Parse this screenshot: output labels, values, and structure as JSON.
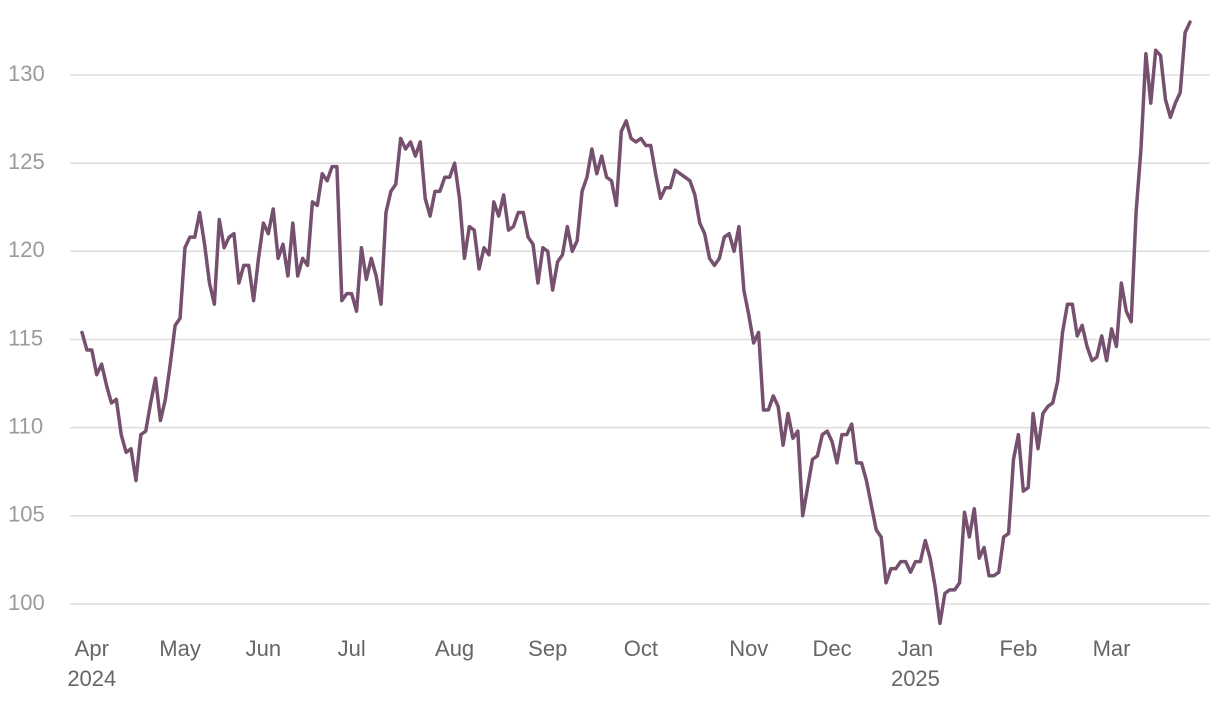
{
  "chart_data": {
    "type": "line",
    "color": "#76506f",
    "grid": true,
    "ylim": [
      98.5,
      133.4
    ],
    "yticks": [
      100,
      105,
      110,
      115,
      120,
      125,
      130
    ],
    "categories": [
      null,
      null,
      "Apr\n2024",
      null,
      null,
      null,
      null,
      null,
      null,
      null,
      null,
      null,
      null,
      null,
      null,
      null,
      null,
      null,
      null,
      null,
      "May",
      null,
      null,
      null,
      null,
      null,
      null,
      null,
      null,
      null,
      null,
      null,
      null,
      null,
      null,
      null,
      null,
      "Jun",
      null,
      null,
      null,
      null,
      null,
      null,
      null,
      null,
      null,
      null,
      null,
      null,
      null,
      null,
      null,
      null,
      null,
      "Jul",
      null,
      null,
      null,
      null,
      null,
      null,
      null,
      null,
      null,
      null,
      null,
      null,
      null,
      null,
      null,
      null,
      null,
      null,
      null,
      null,
      "Aug",
      null,
      null,
      null,
      null,
      null,
      null,
      null,
      null,
      null,
      null,
      null,
      null,
      null,
      null,
      null,
      null,
      null,
      null,
      "Sep",
      null,
      null,
      null,
      null,
      null,
      null,
      null,
      null,
      null,
      null,
      null,
      null,
      null,
      null,
      null,
      null,
      null,
      null,
      "Oct",
      null,
      null,
      null,
      null,
      null,
      null,
      null,
      null,
      null,
      null,
      null,
      null,
      null,
      null,
      null,
      null,
      null,
      null,
      null,
      null,
      null,
      "Nov",
      null,
      null,
      null,
      null,
      null,
      null,
      null,
      null,
      null,
      null,
      null,
      null,
      null,
      null,
      null,
      null,
      "Dec",
      null,
      null,
      null,
      null,
      null,
      null,
      null,
      null,
      null,
      null,
      null,
      null,
      null,
      null,
      null,
      null,
      "Jan\n2025",
      null,
      null,
      null,
      null,
      null,
      null,
      null,
      null,
      null,
      null,
      null,
      null,
      null,
      null,
      null,
      null,
      null,
      null,
      null,
      null,
      "Feb",
      null,
      null,
      null,
      null,
      null,
      null,
      null,
      null,
      null,
      null,
      null,
      null,
      null,
      null,
      null,
      null,
      null,
      null,
      "Mar",
      null,
      null,
      null,
      null,
      null,
      null,
      null,
      null,
      null,
      null,
      null,
      null,
      null,
      null,
      null,
      null
    ],
    "values": [
      115.4,
      114.4,
      114.4,
      113,
      113.6,
      112.4,
      111.4,
      111.6,
      109.6,
      108.6,
      108.8,
      107,
      109.6,
      109.8,
      111.4,
      112.8,
      110.4,
      111.6,
      113.6,
      115.8,
      116.2,
      120.2,
      120.8,
      120.8,
      122.2,
      120.4,
      118.2,
      117,
      121.8,
      120.2,
      120.8,
      121,
      118.2,
      119.2,
      119.2,
      117.2,
      119.6,
      121.6,
      121,
      122.4,
      119.6,
      120.4,
      118.6,
      121.6,
      118.6,
      119.6,
      119.2,
      122.8,
      122.6,
      124.4,
      124,
      124.8,
      124.8,
      117.2,
      117.6,
      117.6,
      116.6,
      120.2,
      118.4,
      119.6,
      118.6,
      117,
      122.2,
      123.4,
      123.8,
      126.4,
      125.8,
      126.2,
      125.4,
      126.2,
      123,
      122,
      123.4,
      123.4,
      124.2,
      124.2,
      125,
      123,
      119.6,
      121.4,
      121.2,
      119,
      120.2,
      119.8,
      122.8,
      122,
      123.2,
      121.2,
      121.4,
      122.2,
      122.2,
      120.8,
      120.4,
      118.2,
      120.2,
      120,
      117.8,
      119.4,
      119.8,
      121.4,
      120,
      120.6,
      123.4,
      124.2,
      125.8,
      124.4,
      125.4,
      124.2,
      124,
      122.6,
      126.8,
      127.4,
      126.4,
      126.2,
      126.4,
      126,
      126,
      124.4,
      123,
      123.6,
      123.6,
      124.6,
      124.4,
      124.2,
      124,
      123.2,
      121.6,
      121,
      119.6,
      119.2,
      119.6,
      120.8,
      121,
      120,
      121.4,
      117.8,
      116.4,
      114.8,
      115.4,
      111,
      111,
      111.8,
      111.2,
      109,
      110.8,
      109.4,
      109.8,
      105,
      106.6,
      108.2,
      108.4,
      109.6,
      109.8,
      109.2,
      108,
      109.6,
      109.6,
      110.2,
      108,
      108,
      107,
      105.6,
      104.2,
      103.8,
      101.2,
      102,
      102,
      102.4,
      102.4,
      101.8,
      102.4,
      102.4,
      103.6,
      102.6,
      101,
      98.9,
      100.6,
      100.8,
      100.8,
      101.2,
      105.2,
      103.8,
      105.4,
      102.6,
      103.2,
      101.6,
      101.6,
      101.8,
      103.8,
      104,
      108.2,
      109.6,
      106.4,
      106.6,
      110.8,
      108.8,
      110.8,
      111.2,
      111.4,
      112.6,
      115.4,
      117,
      117,
      115.2,
      115.8,
      114.6,
      113.8,
      114,
      115.2,
      113.8,
      115.6,
      114.6,
      118.2,
      116.6,
      116,
      122.2,
      125.8,
      131.2,
      128.4,
      131.4,
      131.1,
      128.6,
      127.6,
      128.4,
      129,
      132.4,
      133
    ]
  }
}
